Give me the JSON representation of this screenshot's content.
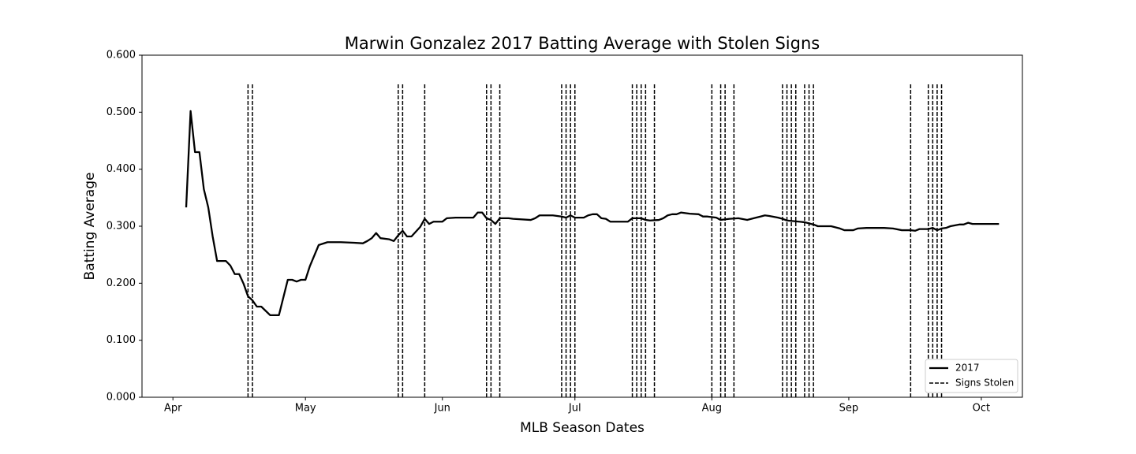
{
  "chart_data": {
    "type": "line",
    "title": "Marwin Gonzalez 2017 Batting Average with Stolen Signs",
    "x_label": "MLB Season Dates",
    "y_label": "Batting Average",
    "xlim": [
      84,
      283.3
    ],
    "ylim": [
      0,
      0.6
    ],
    "xticks": [
      {
        "value": 91,
        "label": "Apr"
      },
      {
        "value": 121,
        "label": "May"
      },
      {
        "value": 152,
        "label": "Jun"
      },
      {
        "value": 182,
        "label": "Jul"
      },
      {
        "value": 213,
        "label": "Aug"
      },
      {
        "value": 244,
        "label": "Sep"
      },
      {
        "value": 274,
        "label": "Oct"
      }
    ],
    "yticks": [
      {
        "value": 0,
        "label": "0.000"
      },
      {
        "value": 0.1,
        "label": "0.100"
      },
      {
        "value": 0.2,
        "label": "0.200"
      },
      {
        "value": 0.3,
        "label": "0.300"
      },
      {
        "value": 0.4,
        "label": "0.400"
      },
      {
        "value": 0.5,
        "label": "0.500"
      },
      {
        "value": 0.6,
        "label": "0.600"
      }
    ],
    "grid": false,
    "legend": "lower right",
    "series": [
      {
        "name": "2017",
        "color": "#000000",
        "x": [
          94,
          95,
          96,
          97,
          98,
          99,
          100,
          101,
          103,
          104,
          105,
          106,
          107,
          108,
          109,
          110,
          111,
          113,
          115,
          117,
          118,
          119,
          120,
          121,
          122,
          124,
          126,
          129,
          132,
          134,
          135,
          136,
          137,
          138,
          140,
          141,
          142,
          143,
          144,
          145,
          147,
          148,
          149,
          150,
          152,
          153,
          155,
          159,
          160,
          161,
          162,
          163,
          164,
          165,
          167,
          168,
          172,
          173,
          174,
          177,
          179,
          180,
          181,
          182,
          184,
          185,
          186,
          187,
          188,
          189,
          190,
          194,
          195,
          197,
          198,
          199,
          201,
          202,
          203,
          204,
          205,
          206,
          208,
          210,
          211,
          212,
          214,
          215,
          217,
          219,
          221,
          223,
          224,
          225,
          226,
          228,
          229,
          230,
          234,
          236,
          237,
          240,
          242,
          243,
          245,
          246,
          248,
          250,
          252,
          254,
          256,
          258,
          259,
          260,
          262,
          263,
          264,
          265,
          266,
          267,
          269,
          270,
          271,
          272,
          278
        ],
        "values": [
          0.333,
          0.502,
          0.43,
          0.43,
          0.365,
          0.333,
          0.282,
          0.239,
          0.239,
          0.231,
          0.216,
          0.216,
          0.199,
          0.177,
          0.17,
          0.159,
          0.159,
          0.144,
          0.144,
          0.206,
          0.206,
          0.203,
          0.206,
          0.206,
          0.23,
          0.267,
          0.272,
          0.272,
          0.271,
          0.27,
          0.274,
          0.279,
          0.288,
          0.279,
          0.277,
          0.274,
          0.284,
          0.292,
          0.282,
          0.282,
          0.299,
          0.313,
          0.304,
          0.308,
          0.308,
          0.314,
          0.315,
          0.315,
          0.324,
          0.324,
          0.314,
          0.311,
          0.304,
          0.314,
          0.314,
          0.313,
          0.311,
          0.314,
          0.319,
          0.319,
          0.317,
          0.315,
          0.319,
          0.315,
          0.315,
          0.319,
          0.321,
          0.321,
          0.314,
          0.313,
          0.308,
          0.308,
          0.314,
          0.314,
          0.311,
          0.31,
          0.311,
          0.314,
          0.319,
          0.321,
          0.321,
          0.324,
          0.322,
          0.321,
          0.317,
          0.317,
          0.315,
          0.311,
          0.313,
          0.314,
          0.311,
          0.315,
          0.317,
          0.319,
          0.318,
          0.315,
          0.313,
          0.31,
          0.307,
          0.303,
          0.3,
          0.3,
          0.296,
          0.293,
          0.293,
          0.296,
          0.297,
          0.297,
          0.297,
          0.296,
          0.293,
          0.293,
          0.292,
          0.295,
          0.295,
          0.297,
          0.293,
          0.296,
          0.297,
          0.3,
          0.303,
          0.303,
          0.306,
          0.304,
          0.304
        ]
      }
    ],
    "vlines": {
      "name": "Signs Stolen",
      "color": "#000000",
      "style": "dashed",
      "ymax": 0.55,
      "x": [
        108,
        109,
        142,
        143,
        148,
        162,
        163,
        165,
        179,
        180,
        181,
        182,
        195,
        196,
        197,
        198,
        200,
        213,
        215,
        216,
        218,
        229,
        230,
        231,
        232,
        234,
        235,
        236,
        258,
        262,
        263,
        264,
        265
      ]
    }
  }
}
